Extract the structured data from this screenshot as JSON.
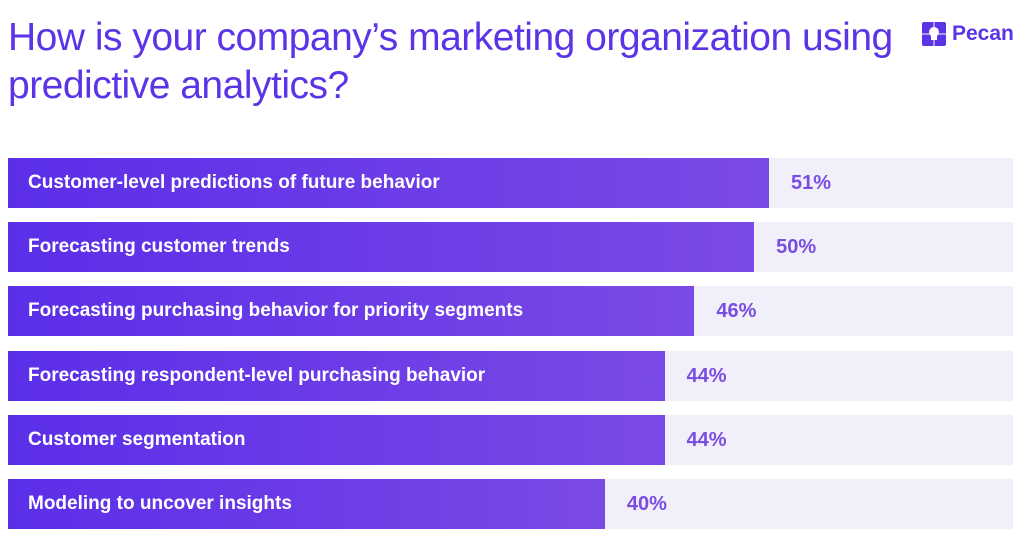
{
  "brand": {
    "name": "Pecan",
    "color": "#5a34e6"
  },
  "chart_data": {
    "type": "bar",
    "orientation": "horizontal",
    "title": "How is your company’s marketing organization using predictive analytics?",
    "categories": [
      "Customer-level predictions of future behavior",
      "Forecasting customer trends",
      "Forecasting purchasing behavior for priority segments",
      "Forecasting respondent-level purchasing behavior",
      "Customer segmentation",
      "Modeling to uncover insights"
    ],
    "values": [
      51,
      50,
      46,
      44,
      44,
      40
    ],
    "value_labels": [
      "51%",
      "50%",
      "46%",
      "44%",
      "44%",
      "40%"
    ],
    "unit": "%",
    "colors": {
      "bar_start": "#5b2ee8",
      "bar_end": "#7b4ae6",
      "track": "#f0effa",
      "value_text": "#7a4ce0"
    },
    "grid": false
  }
}
